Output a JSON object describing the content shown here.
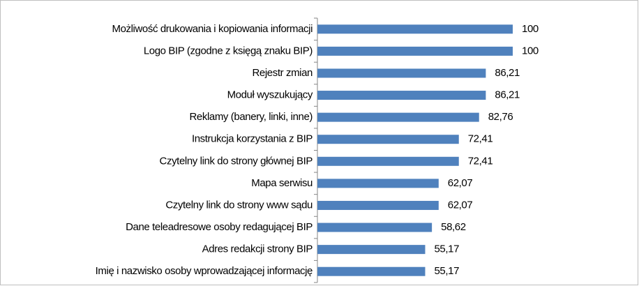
{
  "chart_data": {
    "type": "bar",
    "orientation": "horizontal",
    "categories": [
      "Możliwość drukowania i kopiowania informacji",
      "Logo BIP (zgodne z księgą znaku BIP)",
      "Rejestr zmian",
      "Moduł wyszukujący",
      "Reklamy (banery, linki, inne)",
      "Instrukcja korzystania z BIP",
      "Czytelny link do strony głównej BIP",
      "Mapa serwisu",
      "Czytelny link do strony www sądu",
      "Dane teleadresowe osoby redagującej BIP",
      "Adres redakcji strony BIP",
      "Imię i nazwisko osoby wprowadzającej informację"
    ],
    "values": [
      100,
      100,
      86.21,
      86.21,
      82.76,
      72.41,
      72.41,
      62.07,
      62.07,
      58.62,
      55.17,
      55.17
    ],
    "value_labels": [
      "100",
      "100",
      "86,21",
      "86,21",
      "82,76",
      "72,41",
      "72,41",
      "62,07",
      "62,07",
      "58,62",
      "55,17",
      "55,17"
    ],
    "color": "#4f81bd"
  }
}
